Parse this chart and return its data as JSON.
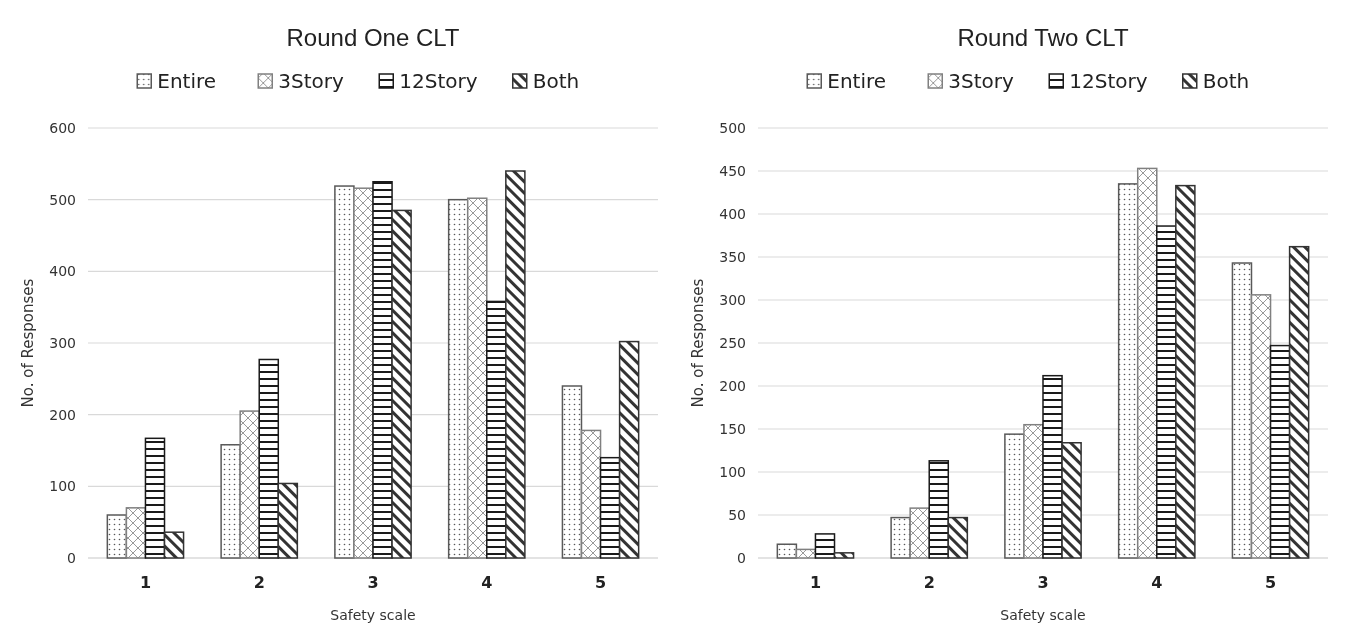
{
  "chart_data": [
    {
      "type": "bar",
      "title": "Round One CLT",
      "xlabel": "Safety scale",
      "ylabel": "No. of Responses",
      "categories": [
        "1",
        "2",
        "3",
        "4",
        "5"
      ],
      "series": [
        {
          "name": "Entire",
          "color": "#595959",
          "values": [
            60,
            158,
            519,
            500,
            240
          ]
        },
        {
          "name": "3Story",
          "color": "#808080",
          "values": [
            70,
            205,
            516,
            502,
            178
          ]
        },
        {
          "name": "12Story",
          "color": "#1a1a1a",
          "values": [
            167,
            277,
            525,
            358,
            140
          ]
        },
        {
          "name": "Both",
          "color": "#333333",
          "values": [
            36,
            104,
            485,
            540,
            302
          ]
        }
      ],
      "ylim": [
        0,
        600
      ],
      "yticks": [
        0,
        100,
        200,
        300,
        400,
        500,
        600
      ],
      "grid": "y",
      "legend": "top"
    },
    {
      "type": "bar",
      "title": "Round Two CLT",
      "xlabel": "Safety scale",
      "ylabel": "No. of Responses",
      "categories": [
        "1",
        "2",
        "3",
        "4",
        "5"
      ],
      "series": [
        {
          "name": "Entire",
          "color": "#595959",
          "values": [
            16,
            47,
            144,
            435,
            343
          ]
        },
        {
          "name": "3Story",
          "color": "#808080",
          "values": [
            10,
            58,
            155,
            453,
            306
          ]
        },
        {
          "name": "12Story",
          "color": "#1a1a1a",
          "values": [
            28,
            113,
            212,
            386,
            247
          ]
        },
        {
          "name": "Both",
          "color": "#333333",
          "values": [
            6,
            47,
            134,
            433,
            362
          ]
        }
      ],
      "ylim": [
        0,
        500
      ],
      "yticks": [
        0,
        50,
        100,
        150,
        200,
        250,
        300,
        350,
        400,
        450,
        500
      ],
      "grid": "y",
      "legend": "top"
    }
  ]
}
